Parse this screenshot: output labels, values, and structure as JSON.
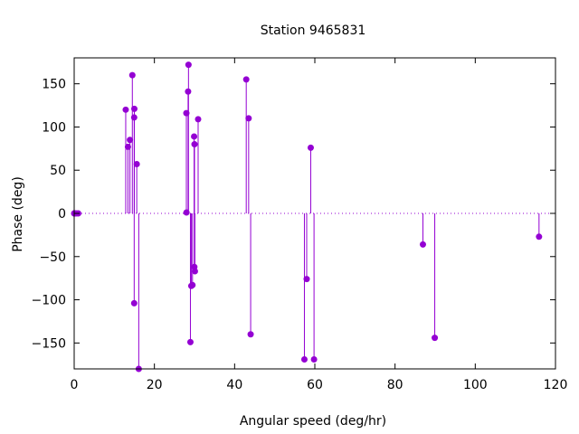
{
  "chart_data": {
    "type": "scatter",
    "style": "impulses-with-points",
    "title": "Station 9465831",
    "xlabel": "Angular speed (deg/hr)",
    "ylabel": "Phase (deg)",
    "xlim": [
      0,
      120
    ],
    "ylim": [
      -180,
      180
    ],
    "xticks": [
      0,
      20,
      40,
      60,
      80,
      100,
      120
    ],
    "yticks": [
      -150,
      -100,
      -50,
      0,
      50,
      100,
      150
    ],
    "zero_line": "dotted",
    "grid": false,
    "series_color": "#9400d3",
    "points": [
      {
        "x": 0.0,
        "y": 0
      },
      {
        "x": 0.04,
        "y": 0
      },
      {
        "x": 0.08,
        "y": 0
      },
      {
        "x": 0.5,
        "y": 0
      },
      {
        "x": 1.0,
        "y": 0
      },
      {
        "x": 12.85,
        "y": 120
      },
      {
        "x": 13.4,
        "y": 77
      },
      {
        "x": 13.9,
        "y": 85
      },
      {
        "x": 14.5,
        "y": 160
      },
      {
        "x": 14.96,
        "y": -104
      },
      {
        "x": 14.96,
        "y": 111
      },
      {
        "x": 15.0,
        "y": 121
      },
      {
        "x": 15.6,
        "y": 57
      },
      {
        "x": 16.1,
        "y": -180
      },
      {
        "x": 27.97,
        "y": 116
      },
      {
        "x": 28.0,
        "y": 1
      },
      {
        "x": 28.4,
        "y": 141
      },
      {
        "x": 28.5,
        "y": 172
      },
      {
        "x": 28.98,
        "y": -149
      },
      {
        "x": 29.2,
        "y": -84
      },
      {
        "x": 29.5,
        "y": -83
      },
      {
        "x": 29.9,
        "y": 89
      },
      {
        "x": 29.96,
        "y": -62
      },
      {
        "x": 30.0,
        "y": 80
      },
      {
        "x": 30.1,
        "y": -67
      },
      {
        "x": 30.9,
        "y": 109
      },
      {
        "x": 42.9,
        "y": 155
      },
      {
        "x": 43.5,
        "y": 110
      },
      {
        "x": 44.0,
        "y": -140
      },
      {
        "x": 57.4,
        "y": -169
      },
      {
        "x": 57.97,
        "y": -76
      },
      {
        "x": 58.98,
        "y": 76
      },
      {
        "x": 59.8,
        "y": -169
      },
      {
        "x": 86.95,
        "y": -36
      },
      {
        "x": 89.9,
        "y": -144
      },
      {
        "x": 115.9,
        "y": -27
      }
    ]
  }
}
